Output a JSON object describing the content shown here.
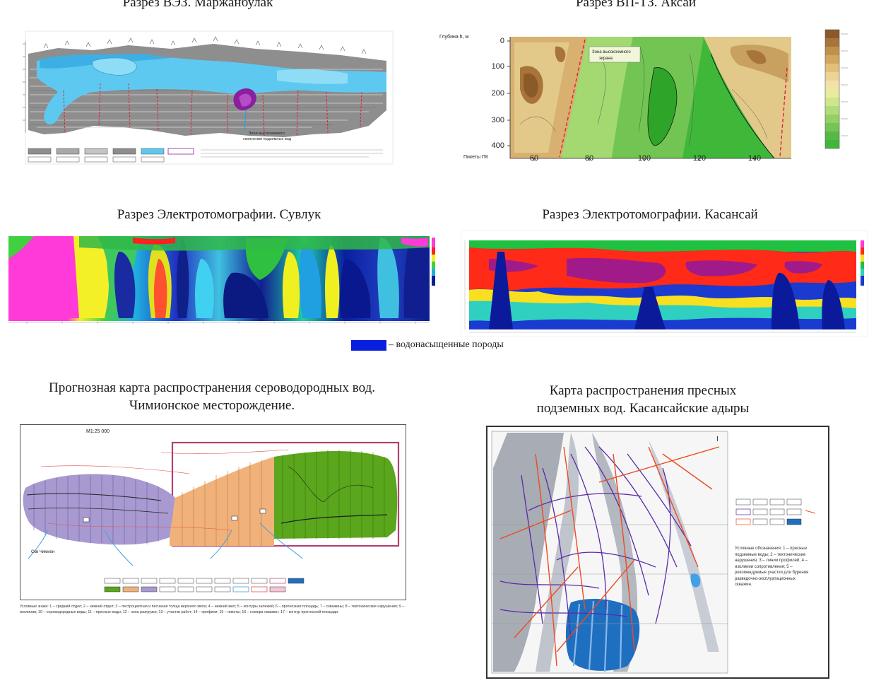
{
  "panels": [
    {
      "id": "ves",
      "title": "Разрез ВЭЗ. Маржанбулак"
    },
    {
      "id": "vpte",
      "title": "Разрез ВП-ТЗ. Аксай"
    },
    {
      "id": "ert_suvluk",
      "title": "Разрез Электротомографии. Сувлук"
    },
    {
      "id": "ert_kasansay",
      "title": "Разрез Электротомографии. Касансай"
    },
    {
      "id": "forecast",
      "title": "Прогнозная карта распространения сероводородных вод.",
      "title_line2": "Чимионское месторождение."
    },
    {
      "id": "fresh",
      "title": "Карта распространения пресных",
      "title_line2": "подземных вод. Касансайские адыры"
    }
  ],
  "legend": {
    "text": "– водонасыщенные породы",
    "swatch_color": "#0a1ee0"
  },
  "ves_annotation": "Зона высокоомного",
  "ves_annotation2": "скопления подземных вод",
  "vpte_annotation": "Зона высокоомного",
  "vpte_annotation2": "экрана",
  "vpte_axis": {
    "ylabel": "Глубина h, м",
    "xlabel": "Пикеты ПК",
    "y_ticks": [
      "0",
      "100",
      "200",
      "300",
      "400"
    ],
    "x_ticks": [
      "60",
      "80",
      "100",
      "120",
      "140"
    ]
  },
  "forecast_scale_label": "М1:25 000",
  "forecast_well_label": "Скв Чимион",
  "forecast_caption": "Условные знаки: 1 – средний отдел; 2 – нижний отдел; 3 – пестроцветная и песчаная толща верхнего мела; 4 – нижний мел; 5 – контуры залежей; 6 – прогнозная площадь; 7 – скважины; 8 – тектонические нарушения; 9 – изолинии; 10 – сероводородные воды; 11 – пресные воды; 12 – зона разгрузки; 13 – участки работ; 14 – профили; 15 – пикеты; 16 – номера скважин; 17 – контур прогнозной площади.",
  "fresh_note": "Условные обозначения: 1 – пресные подземные воды; 2 – тектонические нарушения; 3 – линии профилей; 4 – изолинии сопротивления; 5 – рекомендуемые участки для бурения разведочно-эксплуатационных скважин.",
  "colors": {
    "ves_blue": "#5ec9f0",
    "ves_purple": "#8c1ea0",
    "vpte_brown": "#a8743a",
    "vpte_green": "#3fb83a",
    "forecast_purple": "#a89ad0",
    "forecast_orange": "#f0b27a",
    "forecast_green": "#5aa61c",
    "fresh_blue": "#1f6fc0"
  }
}
